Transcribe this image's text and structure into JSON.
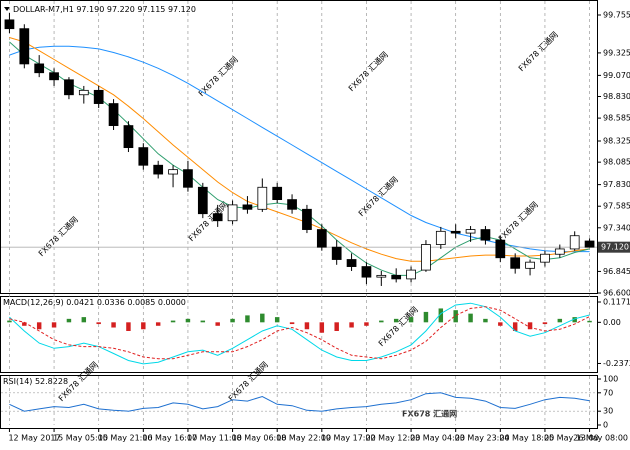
{
  "chart_data": [
    {
      "type": "candlestick",
      "title": "DOLLAR-M7,H1 97.190 97.220 97.115 97.120",
      "categories": [
        "12 May 2017",
        null,
        null,
        "15 May 05:00",
        null,
        null,
        "15 May 21:00",
        null,
        null,
        "16 May 16:00",
        null,
        null,
        "17 May 11:00",
        null,
        null,
        "18 May 06:00",
        null,
        null,
        "18 May 22:00",
        null,
        null,
        "19 May 17:00",
        null,
        null,
        "22 May 12:00",
        null,
        null,
        "23 May 04:00",
        null,
        null,
        "23 May 23:00",
        null,
        null,
        "24 May 18:00",
        null,
        null,
        "25 May 13:00",
        null,
        null,
        "26 May 08:00"
      ],
      "ohlc": [
        [
          99.7,
          99.78,
          99.55,
          99.6
        ],
        [
          99.6,
          99.65,
          99.15,
          99.2
        ],
        [
          99.2,
          99.3,
          99.05,
          99.1
        ],
        [
          99.1,
          99.15,
          98.95,
          99.02
        ],
        [
          99.02,
          99.05,
          98.8,
          98.85
        ],
        [
          98.85,
          98.95,
          98.75,
          98.9
        ],
        [
          98.9,
          98.95,
          98.7,
          98.75
        ],
        [
          98.75,
          98.8,
          98.45,
          98.5
        ],
        [
          98.5,
          98.55,
          98.2,
          98.25
        ],
        [
          98.25,
          98.3,
          98.0,
          98.05
        ],
        [
          98.05,
          98.1,
          97.9,
          97.95
        ],
        [
          97.95,
          98.05,
          97.8,
          98.0
        ],
        [
          98.0,
          98.1,
          97.75,
          97.8
        ],
        [
          97.8,
          97.85,
          97.45,
          97.5
        ],
        [
          97.5,
          97.6,
          97.35,
          97.42
        ],
        [
          97.42,
          97.65,
          97.38,
          97.6
        ],
        [
          97.6,
          97.7,
          97.5,
          97.55
        ],
        [
          97.55,
          97.9,
          97.52,
          97.8
        ],
        [
          97.8,
          97.85,
          97.62,
          97.66
        ],
        [
          97.66,
          97.72,
          97.5,
          97.55
        ],
        [
          97.55,
          97.6,
          97.28,
          97.32
        ],
        [
          97.32,
          97.38,
          97.08,
          97.12
        ],
        [
          97.12,
          97.2,
          96.92,
          96.98
        ],
        [
          96.98,
          97.05,
          96.85,
          96.9
        ],
        [
          96.9,
          96.95,
          96.7,
          96.78
        ],
        [
          96.78,
          96.85,
          96.68,
          96.8
        ],
        [
          96.8,
          96.88,
          96.72,
          96.76
        ],
        [
          96.76,
          96.9,
          96.72,
          96.86
        ],
        [
          96.86,
          97.2,
          96.84,
          97.15
        ],
        [
          97.15,
          97.35,
          97.1,
          97.3
        ],
        [
          97.3,
          97.38,
          97.22,
          97.28
        ],
        [
          97.28,
          97.36,
          97.18,
          97.32
        ],
        [
          97.32,
          97.36,
          97.15,
          97.2
        ],
        [
          97.2,
          97.25,
          96.95,
          97.0
        ],
        [
          97.0,
          97.05,
          96.82,
          96.88
        ],
        [
          96.88,
          96.98,
          96.8,
          96.95
        ],
        [
          96.95,
          97.08,
          96.9,
          97.04
        ],
        [
          97.04,
          97.15,
          97.0,
          97.1
        ],
        [
          97.1,
          97.3,
          97.08,
          97.25
        ],
        [
          97.19,
          97.22,
          97.115,
          97.12
        ]
      ],
      "series": [
        {
          "color": "#1e90ff",
          "values": [
            99.3,
            99.36,
            99.39,
            99.4,
            99.4,
            99.39,
            99.37,
            99.33,
            99.28,
            99.22,
            99.15,
            99.07,
            98.98,
            98.88,
            98.78,
            98.68,
            98.58,
            98.48,
            98.38,
            98.28,
            98.18,
            98.08,
            97.98,
            97.88,
            97.78,
            97.68,
            97.58,
            97.48,
            97.4,
            97.34,
            97.28,
            97.24,
            97.2,
            97.16,
            97.13,
            97.1,
            97.08,
            97.07,
            97.07,
            97.07
          ]
        },
        {
          "color": "#ff8c00",
          "values": [
            99.5,
            99.45,
            99.35,
            99.25,
            99.15,
            99.05,
            98.95,
            98.85,
            98.72,
            98.58,
            98.43,
            98.28,
            98.14,
            98.0,
            97.86,
            97.74,
            97.64,
            97.58,
            97.52,
            97.46,
            97.4,
            97.33,
            97.25,
            97.17,
            97.1,
            97.04,
            96.99,
            96.96,
            96.96,
            96.98,
            97.0,
            97.02,
            97.03,
            97.03,
            97.02,
            97.02,
            97.03,
            97.05,
            97.08,
            97.1
          ]
        },
        {
          "color": "#2e9e6e",
          "values": [
            99.45,
            99.3,
            99.2,
            99.1,
            98.98,
            98.9,
            98.82,
            98.68,
            98.52,
            98.35,
            98.18,
            98.05,
            97.95,
            97.8,
            97.66,
            97.58,
            97.56,
            97.6,
            97.62,
            97.6,
            97.5,
            97.36,
            97.2,
            97.06,
            96.94,
            96.86,
            96.8,
            96.8,
            96.88,
            97.0,
            97.12,
            97.2,
            97.24,
            97.2,
            97.1,
            97.0,
            96.98,
            97.0,
            97.06,
            97.1
          ]
        }
      ],
      "ylim": [
        96.6,
        99.88
      ],
      "yticks": [
        99.755,
        99.325,
        {
          "value": 99.07,
          "label": "99.070"
        },
        {
          "value": 98.83,
          "label": "98.830"
        },
        98.585,
        98.325,
        98.085,
        {
          "value": 97.83,
          "label": "97.830"
        },
        97.585,
        {
          "value": 97.34,
          "label": "97.340"
        },
        96.845,
        {
          "value": 96.6,
          "label": "96.600"
        }
      ],
      "current_price": {
        "value": 97.12,
        "label": "97.120"
      },
      "grid": true
    },
    {
      "type": "macd",
      "title": "MACD(12,26,9) 0.0421 0.0336 0.0085 0.0000",
      "histogram": {
        "color_up": "#2e8b2e",
        "color_down": "#d42020",
        "values": [
          0.01,
          -0.02,
          -0.04,
          -0.03,
          0.02,
          0.03,
          -0.01,
          -0.03,
          -0.05,
          -0.04,
          -0.02,
          0.01,
          0.02,
          0.01,
          -0.02,
          0.02,
          0.04,
          0.05,
          0.03,
          -0.01,
          -0.04,
          -0.06,
          -0.05,
          -0.03,
          -0.02,
          0.01,
          0.02,
          0.03,
          0.06,
          0.08,
          0.07,
          0.05,
          0.02,
          -0.02,
          -0.05,
          -0.04,
          -0.01,
          0.02,
          0.03,
          0.0085
        ]
      },
      "series": [
        {
          "color": "#00d8e8",
          "values": [
            0.03,
            -0.05,
            -0.12,
            -0.15,
            -0.14,
            -0.12,
            -0.14,
            -0.18,
            -0.22,
            -0.24,
            -0.23,
            -0.2,
            -0.17,
            -0.16,
            -0.19,
            -0.15,
            -0.1,
            -0.05,
            -0.02,
            -0.04,
            -0.1,
            -0.16,
            -0.2,
            -0.22,
            -0.22,
            -0.2,
            -0.17,
            -0.13,
            -0.05,
            0.05,
            0.1,
            0.11,
            0.09,
            0.03,
            -0.05,
            -0.08,
            -0.06,
            -0.02,
            0.02,
            0.0421
          ]
        },
        {
          "color": "#e02020",
          "dashed": true,
          "values": [
            0.02,
            0.0,
            -0.05,
            -0.1,
            -0.13,
            -0.14,
            -0.14,
            -0.15,
            -0.17,
            -0.2,
            -0.21,
            -0.21,
            -0.19,
            -0.17,
            -0.17,
            -0.17,
            -0.14,
            -0.1,
            -0.05,
            -0.03,
            -0.06,
            -0.1,
            -0.15,
            -0.19,
            -0.2,
            -0.21,
            -0.19,
            -0.16,
            -0.11,
            -0.03,
            0.04,
            0.08,
            0.09,
            0.07,
            0.02,
            -0.03,
            -0.05,
            -0.04,
            -0.01,
            0.0336
          ]
        }
      ],
      "ylim": [
        -0.2865,
        0.146
      ],
      "yticks": [
        0.1171,
        {
          "value": 0,
          "label": "0.00"
        },
        -0.2373
      ]
    },
    {
      "type": "line",
      "title": "RSI(14) 52.8228",
      "series": [
        {
          "color": "#1e70d0",
          "values": [
            45,
            30,
            35,
            40,
            38,
            45,
            35,
            32,
            30,
            36,
            38,
            48,
            45,
            35,
            40,
            55,
            52,
            62,
            45,
            42,
            32,
            30,
            35,
            38,
            40,
            45,
            48,
            55,
            68,
            70,
            60,
            58,
            52,
            38,
            36,
            45,
            55,
            60,
            58,
            52.8228
          ]
        }
      ],
      "ylim": [
        0,
        100
      ],
      "yticks": [
        100,
        70,
        30,
        0
      ],
      "levels": [
        70,
        30
      ]
    }
  ],
  "watermark": "FX678 汇通网"
}
